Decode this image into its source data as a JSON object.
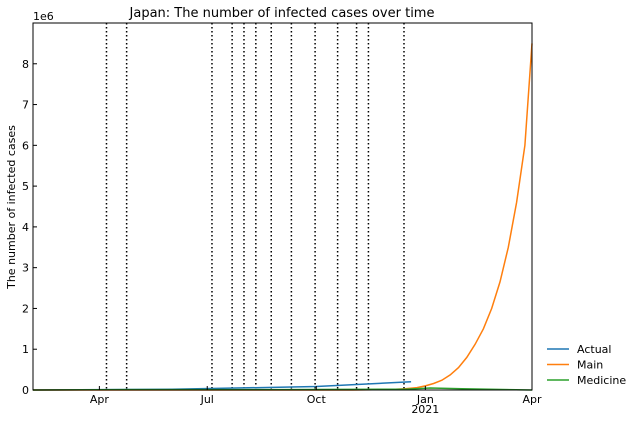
{
  "chart_data": {
    "type": "line",
    "title": "Japan: The number of infected cases over time",
    "ylabel": "The number of infected cases",
    "xlabel": "",
    "y_offset_label": "1e6",
    "ylim": [
      0,
      9
    ],
    "y_ticks": [
      "0",
      "1",
      "2",
      "3",
      "4",
      "5",
      "6",
      "7",
      "8"
    ],
    "x_ticks": [
      {
        "date": "2020-04-01",
        "label": "Apr",
        "sublabel": ""
      },
      {
        "date": "2020-07-01",
        "label": "Jul",
        "sublabel": ""
      },
      {
        "date": "2020-10-01",
        "label": "Oct",
        "sublabel": ""
      },
      {
        "date": "2021-01-01",
        "label": "Jan",
        "sublabel": "2021"
      },
      {
        "date": "2021-04-01",
        "label": "Apr",
        "sublabel": ""
      }
    ],
    "xlim": [
      "2020-02-05",
      "2021-04-01"
    ],
    "vlines": [
      "2020-04-07",
      "2020-04-24",
      "2020-07-05",
      "2020-07-22",
      "2020-08-01",
      "2020-08-11",
      "2020-08-24",
      "2020-09-10",
      "2020-09-30",
      "2020-10-19",
      "2020-11-04",
      "2020-11-14",
      "2020-12-14"
    ],
    "legend_position": "outside-bottom-right",
    "series": [
      {
        "name": "Actual",
        "color": "#1f77b4",
        "points": [
          [
            "2020-02-05",
            0.0
          ],
          [
            "2020-06-01",
            0.017
          ],
          [
            "2020-10-01",
            0.085
          ],
          [
            "2020-12-20",
            0.2
          ]
        ]
      },
      {
        "name": "Main",
        "color": "#ff7f0e",
        "points": [
          [
            "2020-02-05",
            0.0
          ],
          [
            "2020-08-01",
            0.0
          ],
          [
            "2020-11-01",
            0.0
          ],
          [
            "2020-12-01",
            0.01
          ],
          [
            "2020-12-15",
            0.03
          ],
          [
            "2020-12-25",
            0.06
          ],
          [
            "2021-01-01",
            0.1
          ],
          [
            "2021-01-08",
            0.16
          ],
          [
            "2021-01-15",
            0.24
          ],
          [
            "2021-01-22",
            0.37
          ],
          [
            "2021-01-29",
            0.55
          ],
          [
            "2021-02-05",
            0.8
          ],
          [
            "2021-02-12",
            1.12
          ],
          [
            "2021-02-19",
            1.5
          ],
          [
            "2021-02-26",
            2.0
          ],
          [
            "2021-03-05",
            2.65
          ],
          [
            "2021-03-12",
            3.5
          ],
          [
            "2021-03-19",
            4.6
          ],
          [
            "2021-03-26",
            6.0
          ],
          [
            "2021-04-01",
            8.5
          ]
        ]
      },
      {
        "name": "Medicine",
        "color": "#2ca02c",
        "points": [
          [
            "2020-02-05",
            0.0
          ],
          [
            "2020-05-01",
            0.01
          ],
          [
            "2020-09-01",
            0.01
          ],
          [
            "2020-12-15",
            0.02
          ],
          [
            "2021-01-05",
            0.05
          ],
          [
            "2021-02-01",
            0.03
          ],
          [
            "2021-04-01",
            0.0
          ]
        ]
      }
    ]
  }
}
